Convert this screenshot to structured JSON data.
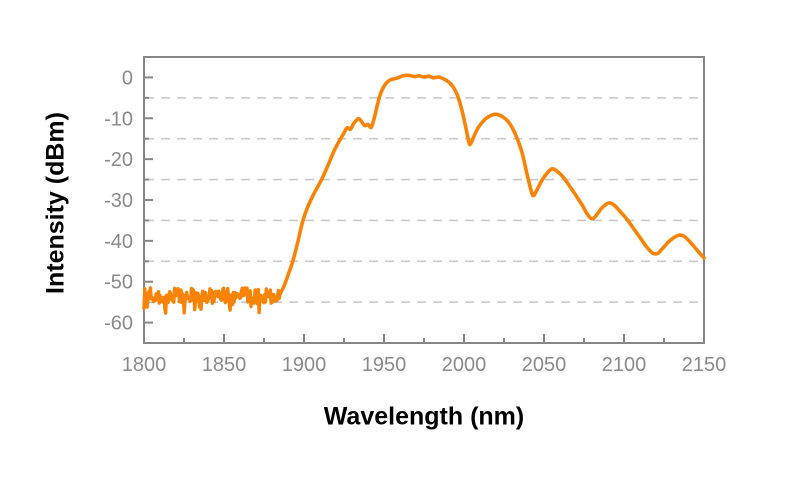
{
  "figure": {
    "background": "#ffffff"
  },
  "chart_data": {
    "type": "line",
    "title": "",
    "xlabel": "Wavelength (nm)",
    "ylabel": "Intensity (dBm)",
    "xlim": [
      1800,
      2150
    ],
    "ylim": [
      -65,
      5
    ],
    "x_ticks_major": [
      1800,
      1850,
      1900,
      1950,
      2000,
      2050,
      2100,
      2150
    ],
    "x_ticks_minor": [
      1825,
      1875,
      1925,
      1975,
      2025,
      2075,
      2125
    ],
    "y_ticks_major": [
      0,
      -10,
      -20,
      -30,
      -40,
      -50,
      -60
    ],
    "y_ticks_minor": [
      -5,
      -15,
      -25,
      -35,
      -45,
      -55
    ],
    "gridlines_y": [
      -5,
      -15,
      -25,
      -35,
      -45,
      -55
    ],
    "grid_style": "dashed",
    "legend": "none",
    "colors": {
      "line": "#F98307",
      "axis": "#868686",
      "grid": "#C9C9C9",
      "tick_label": "#8A8A8A",
      "axis_title": "#000000"
    },
    "series": [
      {
        "name": "spectrum",
        "noise_floor": {
          "x_start": 1800,
          "x_end": 1885,
          "mean_dbm": -53.4,
          "amplitude_dbm": 1.9,
          "spike_chance": 0.12,
          "spike_depth_dbm": 4.0,
          "samples": 170,
          "seed": 12
        },
        "points": [
          [
            1885,
            -53.0
          ],
          [
            1887,
            -51.5
          ],
          [
            1889,
            -49.5
          ],
          [
            1891,
            -47.3
          ],
          [
            1893,
            -45.0
          ],
          [
            1896,
            -40.5
          ],
          [
            1899,
            -35.5
          ],
          [
            1902,
            -32.0
          ],
          [
            1906,
            -28.6
          ],
          [
            1911,
            -25.0
          ],
          [
            1915,
            -21.5
          ],
          [
            1919,
            -17.8
          ],
          [
            1922,
            -15.6
          ],
          [
            1925,
            -13.6
          ],
          [
            1927,
            -12.3
          ],
          [
            1929,
            -12.7
          ],
          [
            1931,
            -11.3
          ],
          [
            1934,
            -10.1
          ],
          [
            1936,
            -10.8
          ],
          [
            1938,
            -11.8
          ],
          [
            1940,
            -11.5
          ],
          [
            1942,
            -12.2
          ],
          [
            1944,
            -9.8
          ],
          [
            1946,
            -6.5
          ],
          [
            1948,
            -3.8
          ],
          [
            1951,
            -1.6
          ],
          [
            1954,
            -0.6
          ],
          [
            1958,
            -0.2
          ],
          [
            1962,
            0.4
          ],
          [
            1966,
            0.5
          ],
          [
            1969,
            0.2
          ],
          [
            1972,
            0.4
          ],
          [
            1975,
            0.1
          ],
          [
            1978,
            0.3
          ],
          [
            1981,
            -0.1
          ],
          [
            1984,
            0.1
          ],
          [
            1987,
            -0.3
          ],
          [
            1990,
            -1.0
          ],
          [
            1993,
            -2.2
          ],
          [
            1996,
            -4.5
          ],
          [
            1999,
            -8.5
          ],
          [
            2001,
            -12.0
          ],
          [
            2003,
            -15.8
          ],
          [
            2004,
            -16.3
          ],
          [
            2006,
            -14.6
          ],
          [
            2009,
            -12.2
          ],
          [
            2013,
            -10.3
          ],
          [
            2017,
            -9.3
          ],
          [
            2020,
            -9.0
          ],
          [
            2024,
            -9.6
          ],
          [
            2028,
            -11.0
          ],
          [
            2032,
            -13.8
          ],
          [
            2036,
            -18.0
          ],
          [
            2039,
            -23.0
          ],
          [
            2042,
            -27.8
          ],
          [
            2043.5,
            -28.9
          ],
          [
            2046,
            -27.2
          ],
          [
            2049,
            -25.0
          ],
          [
            2052,
            -23.4
          ],
          [
            2055,
            -22.4
          ],
          [
            2058,
            -22.9
          ],
          [
            2062,
            -24.4
          ],
          [
            2066,
            -26.6
          ],
          [
            2070,
            -28.9
          ],
          [
            2074,
            -31.3
          ],
          [
            2077,
            -33.4
          ],
          [
            2080,
            -34.6
          ],
          [
            2083,
            -33.6
          ],
          [
            2086,
            -32.0
          ],
          [
            2089,
            -31.0
          ],
          [
            2091,
            -30.7
          ],
          [
            2094,
            -31.3
          ],
          [
            2098,
            -33.0
          ],
          [
            2102,
            -34.8
          ],
          [
            2106,
            -37.0
          ],
          [
            2110,
            -39.2
          ],
          [
            2114,
            -41.4
          ],
          [
            2118,
            -43.0
          ],
          [
            2121,
            -43.1
          ],
          [
            2124,
            -41.9
          ],
          [
            2128,
            -40.2
          ],
          [
            2132,
            -39.0
          ],
          [
            2135,
            -38.6
          ],
          [
            2138,
            -39.0
          ],
          [
            2142,
            -40.6
          ],
          [
            2146,
            -42.4
          ],
          [
            2150,
            -44.2
          ]
        ]
      }
    ]
  }
}
